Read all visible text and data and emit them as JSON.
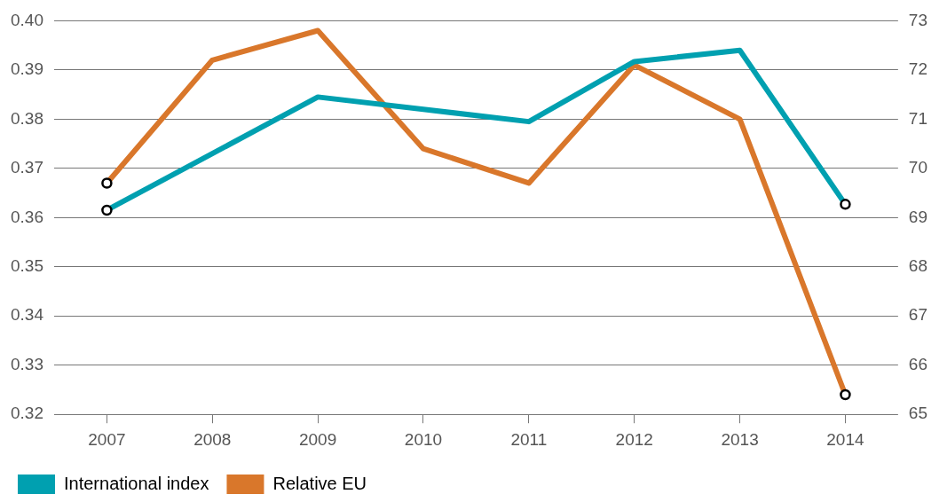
{
  "chart_data": {
    "type": "line",
    "categories": [
      "2007",
      "2008",
      "2009",
      "2010",
      "2011",
      "2012",
      "2013",
      "2014"
    ],
    "series": [
      {
        "name": "International index",
        "color": "#00a0b0",
        "values": [
          0.3615,
          0.373,
          0.3845,
          0.382,
          0.3795,
          0.3917,
          0.394,
          0.3627
        ]
      },
      {
        "name": "Relative EU",
        "color": "#d9772b",
        "axis": "y2",
        "values": [
          69.7,
          72.2,
          72.8,
          70.4,
          69.7,
          72.1,
          71.0,
          65.4
        ]
      }
    ],
    "ylim": [
      0.32,
      0.4
    ],
    "yticks": [
      {
        "value": 0.32,
        "label": "0.32"
      },
      {
        "value": 0.33,
        "label": "0.33"
      },
      {
        "value": 0.34,
        "label": "0.34"
      },
      {
        "value": 0.35,
        "label": "0.35"
      },
      {
        "value": 0.36,
        "label": "0.36"
      },
      {
        "value": 0.37,
        "label": "0.37"
      },
      {
        "value": 0.38,
        "label": "0.38"
      },
      {
        "value": 0.39,
        "label": "0.39"
      },
      {
        "value": 0.4,
        "label": "0.40"
      }
    ],
    "y2lim": [
      65,
      73
    ],
    "y2ticks": [
      65,
      66,
      67,
      68,
      69,
      70,
      71,
      72,
      73
    ],
    "grid": "y",
    "legend": "bottom left",
    "line_style": "solid"
  }
}
